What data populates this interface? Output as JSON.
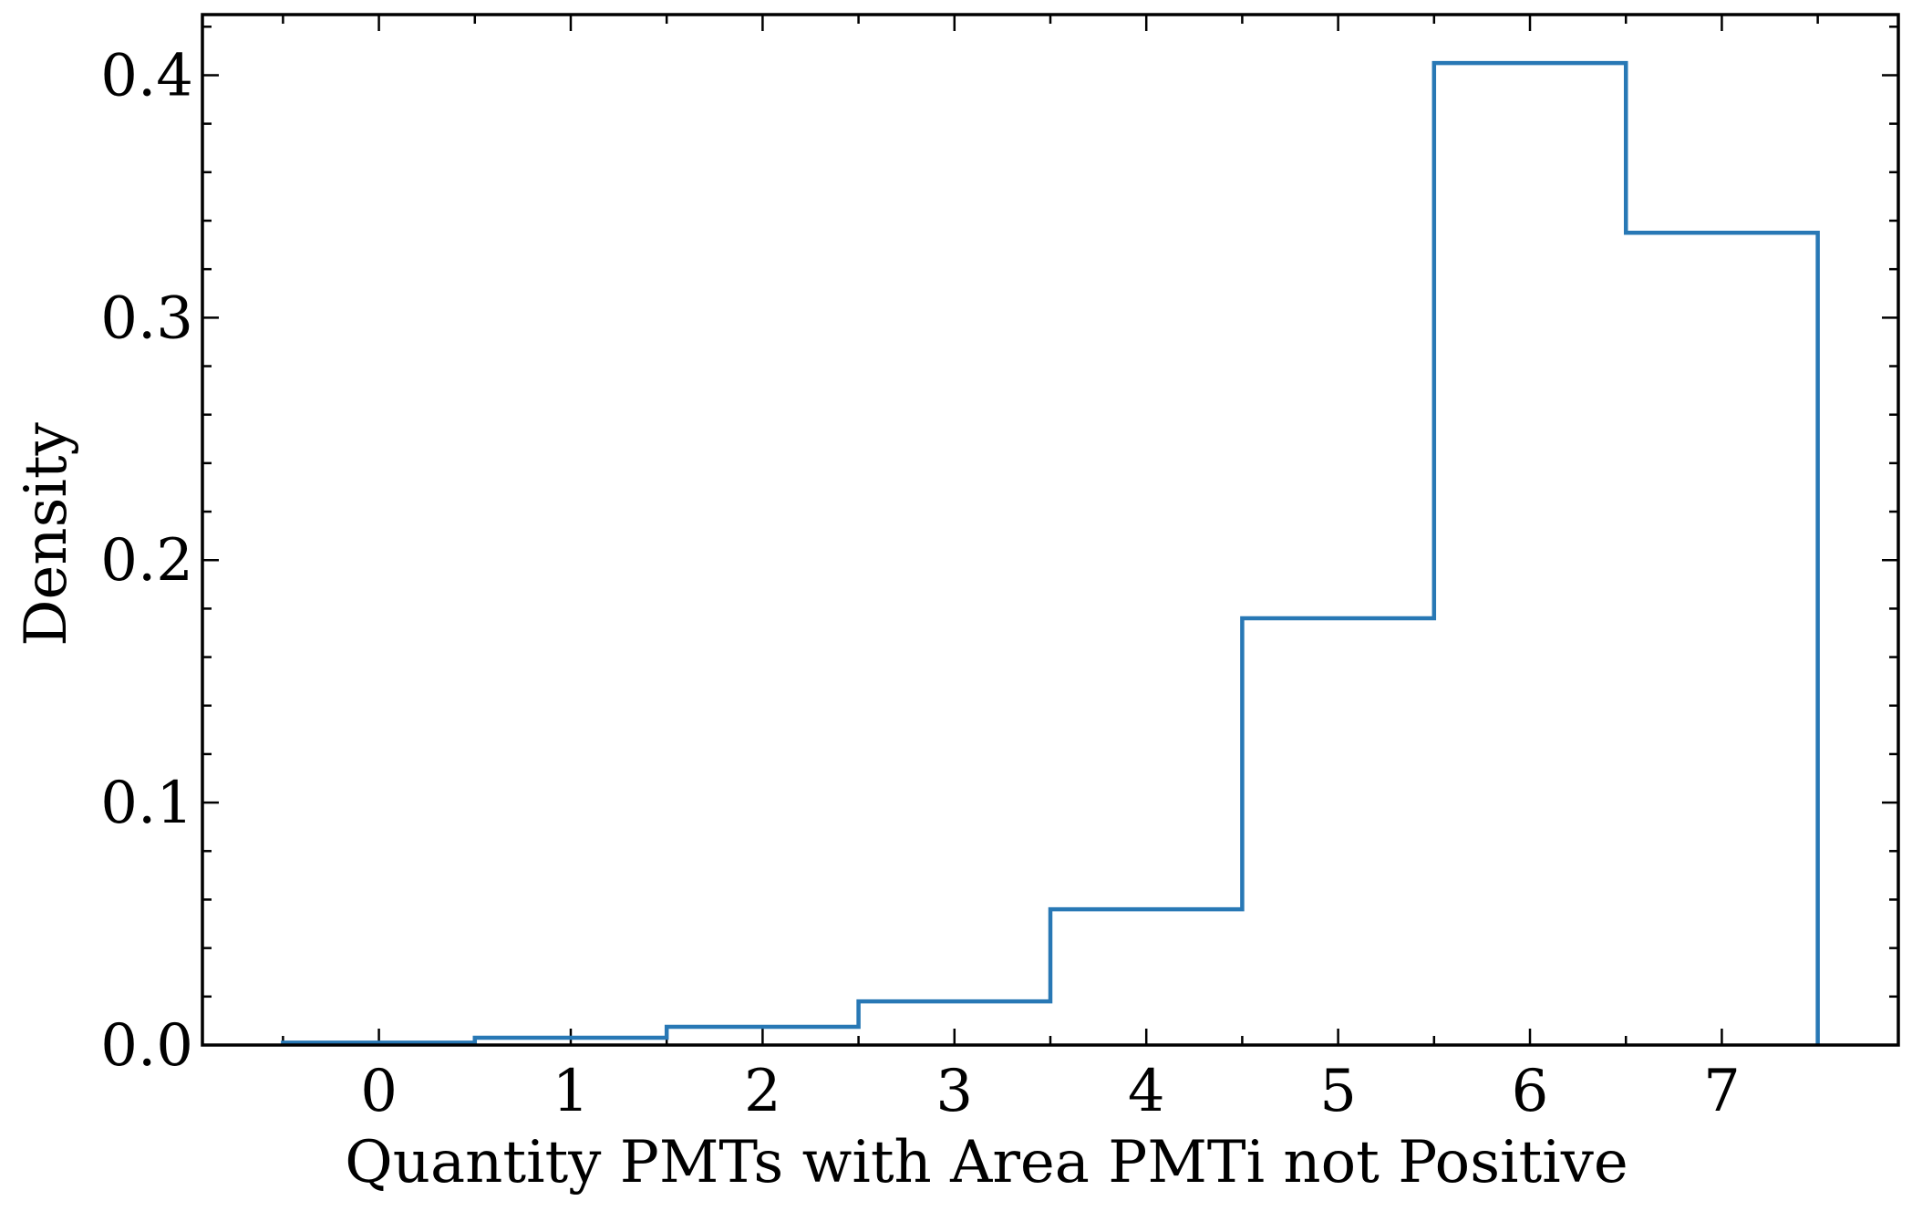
{
  "chart_data": {
    "type": "histogram-step",
    "title": "",
    "xlabel": "Quantity PMTs with Area PMTi not Positive",
    "ylabel": "Density",
    "bin_edges": [
      -0.5,
      0.5,
      1.5,
      2.5,
      3.5,
      4.5,
      5.5,
      6.5,
      7.5
    ],
    "bin_centers": [
      0,
      1,
      2,
      3,
      4,
      5,
      6,
      7
    ],
    "values": [
      0.001,
      0.003,
      0.0075,
      0.018,
      0.056,
      0.176,
      0.405,
      0.335
    ],
    "xlim": [
      -0.92,
      7.92
    ],
    "ylim": [
      0,
      0.425
    ],
    "x_ticks": [
      0,
      1,
      2,
      3,
      4,
      5,
      6,
      7
    ],
    "x_tick_labels": [
      "0",
      "1",
      "2",
      "3",
      "4",
      "5",
      "6",
      "7"
    ],
    "x_minor_step": 0.5,
    "y_ticks": [
      0.0,
      0.1,
      0.2,
      0.3,
      0.4
    ],
    "y_tick_labels": [
      "0.0",
      "0.1",
      "0.2",
      "0.3",
      "0.4"
    ],
    "y_minor_step": 0.02,
    "grid": false,
    "line_color": "#2878b5"
  }
}
